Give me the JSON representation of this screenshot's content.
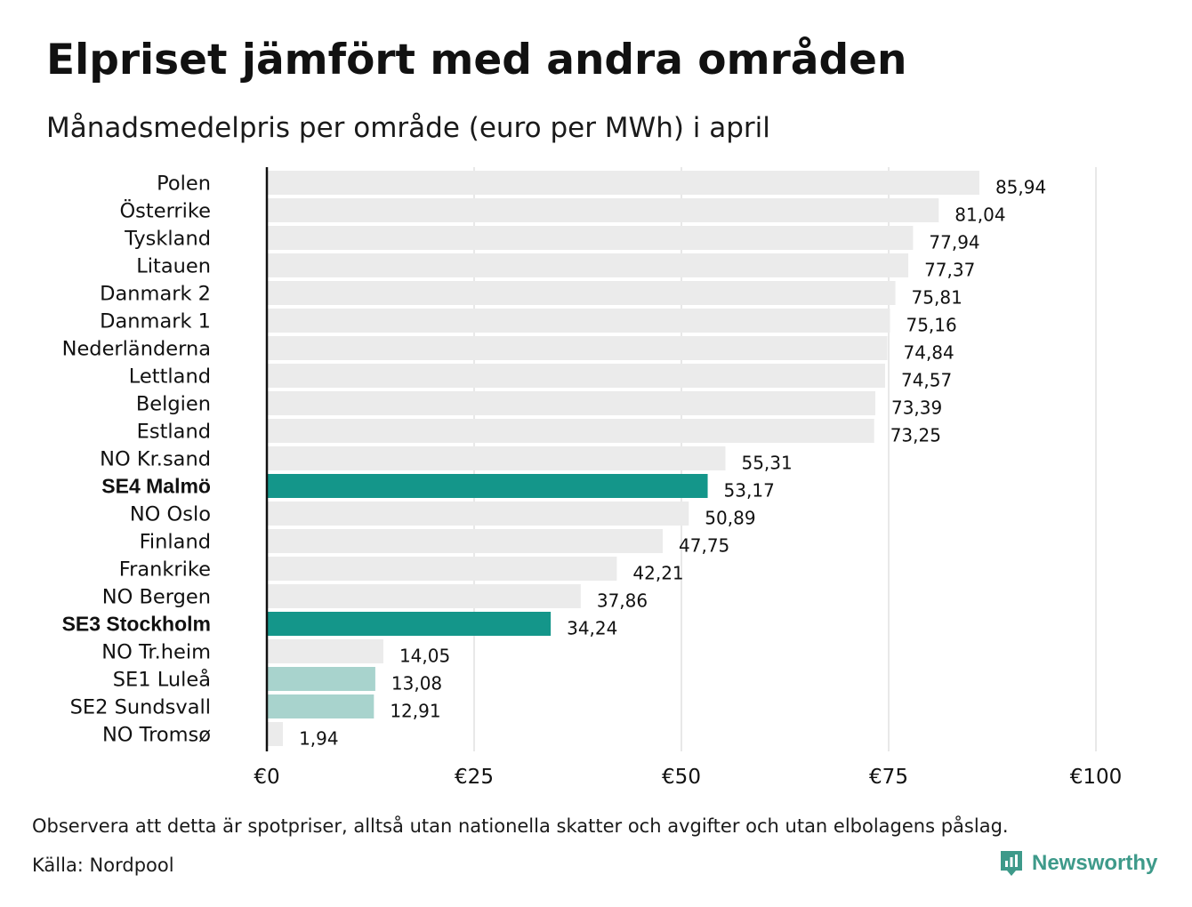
{
  "title": "Elpriset jämfört med andra områden",
  "subtitle": "Månadsmedelpris per område (euro per MWh) i april",
  "note": "Observera att detta är spotpriser, alltså utan nationella skatter och avgifter och utan elbolagens påslag.",
  "source": "Källa: Nordpool",
  "brand": {
    "name": "Newsworthy",
    "icon": "newsworthy-logo-icon",
    "color": "#3e9a8a"
  },
  "colors": {
    "default": "#ebebeb",
    "highlight": "#14968a",
    "secondary": "#a8d3cd",
    "grid": "#d0d0d0",
    "axis": "#111111"
  },
  "chart_data": {
    "type": "bar",
    "orientation": "horizontal",
    "categories": [
      "Polen",
      "Österrike",
      "Tyskland",
      "Litauen",
      "Danmark  2",
      "Danmark  1",
      "Nederländerna",
      "Lettland",
      "Belgien",
      "Estland",
      "NO Kr.sand",
      "SE4 Malmö",
      "NO Oslo",
      "Finland",
      "Frankrike",
      "NO Bergen",
      "SE3 Stockholm",
      "NO Tr.heim",
      "SE1  Luleå",
      "SE2  Sundsvall",
      "NO Tromsø"
    ],
    "values": [
      85.94,
      81.04,
      77.94,
      77.37,
      75.81,
      75.16,
      74.84,
      74.57,
      73.39,
      73.25,
      55.31,
      53.17,
      50.89,
      47.75,
      42.21,
      37.86,
      34.24,
      14.05,
      13.08,
      12.91,
      1.94
    ],
    "value_labels": [
      "85,94",
      "81,04",
      "77,94",
      "77,37",
      "75,81",
      "75,16",
      "74,84",
      "74,57",
      "73,39",
      "73,25",
      "55,31",
      "53,17",
      "50,89",
      "47,75",
      "42,21",
      "37,86",
      "34,24",
      "14,05",
      "13,08",
      "12,91",
      "1,94"
    ],
    "highlight": [
      "default",
      "default",
      "default",
      "default",
      "default",
      "default",
      "default",
      "default",
      "default",
      "default",
      "default",
      "highlight",
      "default",
      "default",
      "default",
      "default",
      "highlight",
      "default",
      "secondary",
      "secondary",
      "default"
    ],
    "bold_labels": [
      "SE4 Malmö",
      "SE3 Stockholm"
    ],
    "x_ticks": [
      0,
      25,
      50,
      75,
      100
    ],
    "x_tick_labels": [
      "€0",
      "€25",
      "€50",
      "€75",
      "€100"
    ],
    "xlim": [
      0,
      100
    ],
    "grid": true,
    "legend": "none"
  }
}
